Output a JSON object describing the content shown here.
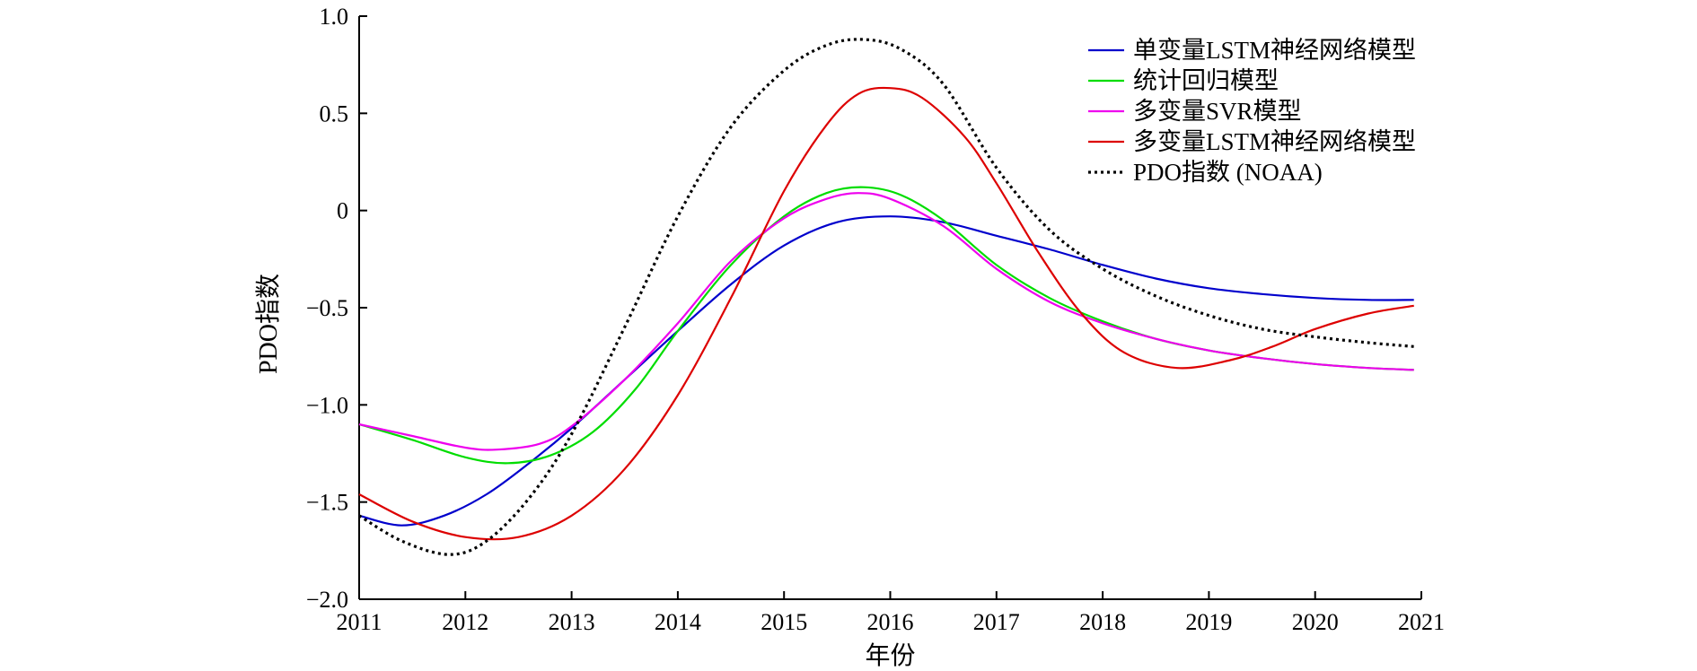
{
  "chart_data": {
    "type": "line",
    "xlabel": "年份",
    "ylabel": "PDO指数",
    "xlim": [
      2011,
      2021
    ],
    "ylim": [
      -2.0,
      1.0
    ],
    "xticks": [
      2011,
      2012,
      2013,
      2014,
      2015,
      2016,
      2017,
      2018,
      2019,
      2020,
      2021
    ],
    "xtick_labels": [
      "2011",
      "2012",
      "2013",
      "2014",
      "2015",
      "2016",
      "2017",
      "2018",
      "2019",
      "2020",
      "2021"
    ],
    "yticks": [
      1.0,
      0.5,
      0,
      -0.5,
      -1.0,
      -1.5,
      -2.0
    ],
    "ytick_labels": [
      "1.0",
      "0.5",
      "0",
      "−0.5",
      "−1.0",
      "−1.5",
      "−2.0"
    ],
    "grid": false,
    "legend_position": "top-right",
    "series": [
      {
        "name": "单变量LSTM神经网络模型",
        "color": "#0000cc",
        "style": "solid",
        "x": [
          2011,
          2011.4,
          2011.8,
          2012.2,
          2012.6,
          2013,
          2013.5,
          2014,
          2014.5,
          2015,
          2015.5,
          2016,
          2016.5,
          2017,
          2017.5,
          2018,
          2018.5,
          2019,
          2019.5,
          2020,
          2020.5,
          2020.93
        ],
        "y": [
          -1.57,
          -1.62,
          -1.57,
          -1.46,
          -1.3,
          -1.12,
          -0.87,
          -0.62,
          -0.38,
          -0.18,
          -0.06,
          -0.03,
          -0.06,
          -0.13,
          -0.2,
          -0.28,
          -0.35,
          -0.4,
          -0.43,
          -0.45,
          -0.46,
          -0.46
        ]
      },
      {
        "name": "统计回归模型",
        "color": "#00dd00",
        "style": "solid",
        "x": [
          2011,
          2011.5,
          2012,
          2012.4,
          2012.8,
          2013.2,
          2013.6,
          2014,
          2014.5,
          2015,
          2015.4,
          2015.75,
          2016.1,
          2016.5,
          2017,
          2017.5,
          2018,
          2018.5,
          2019,
          2019.5,
          2020,
          2020.5,
          2020.93
        ],
        "y": [
          -1.1,
          -1.18,
          -1.27,
          -1.3,
          -1.26,
          -1.14,
          -0.92,
          -0.62,
          -0.28,
          -0.03,
          0.09,
          0.12,
          0.08,
          -0.05,
          -0.28,
          -0.45,
          -0.57,
          -0.66,
          -0.72,
          -0.76,
          -0.79,
          -0.81,
          -0.82
        ]
      },
      {
        "name": "多变量SVR模型",
        "color": "#ee00ee",
        "style": "solid",
        "x": [
          2011,
          2011.5,
          2012,
          2012.3,
          2012.7,
          2013,
          2013.5,
          2014,
          2014.5,
          2015,
          2015.4,
          2015.7,
          2016,
          2016.5,
          2017,
          2017.5,
          2018,
          2018.5,
          2019,
          2019.5,
          2020,
          2020.5,
          2020.93
        ],
        "y": [
          -1.1,
          -1.16,
          -1.22,
          -1.23,
          -1.2,
          -1.11,
          -0.87,
          -0.58,
          -0.26,
          -0.04,
          0.06,
          0.09,
          0.06,
          -0.08,
          -0.3,
          -0.47,
          -0.58,
          -0.66,
          -0.72,
          -0.76,
          -0.79,
          -0.81,
          -0.82
        ]
      },
      {
        "name": "多变量LSTM神经网络模型",
        "color": "#dd0000",
        "style": "solid",
        "x": [
          2011,
          2011.5,
          2012,
          2012.5,
          2013,
          2013.5,
          2014,
          2014.5,
          2015,
          2015.4,
          2015.7,
          2016,
          2016.3,
          2016.7,
          2017,
          2017.4,
          2017.8,
          2018.2,
          2018.7,
          2019.2,
          2019.6,
          2020,
          2020.5,
          2020.93
        ],
        "y": [
          -1.46,
          -1.6,
          -1.68,
          -1.68,
          -1.57,
          -1.33,
          -0.95,
          -0.45,
          0.1,
          0.44,
          0.6,
          0.63,
          0.58,
          0.38,
          0.14,
          -0.22,
          -0.53,
          -0.73,
          -0.81,
          -0.77,
          -0.7,
          -0.61,
          -0.53,
          -0.49
        ]
      },
      {
        "name": "PDO指数 (NOAA)",
        "color": "#000000",
        "style": "dotted",
        "x": [
          2011,
          2011.4,
          2011.85,
          2012.2,
          2012.6,
          2013,
          2013.5,
          2014,
          2014.5,
          2015,
          2015.4,
          2015.75,
          2016.1,
          2016.5,
          2017,
          2017.5,
          2018,
          2018.5,
          2019,
          2019.5,
          2020,
          2020.5,
          2020.93
        ],
        "y": [
          -1.57,
          -1.7,
          -1.77,
          -1.7,
          -1.48,
          -1.15,
          -0.6,
          -0.03,
          0.43,
          0.72,
          0.85,
          0.88,
          0.83,
          0.65,
          0.22,
          -0.1,
          -0.3,
          -0.44,
          -0.54,
          -0.61,
          -0.65,
          -0.68,
          -0.7
        ]
      }
    ]
  }
}
